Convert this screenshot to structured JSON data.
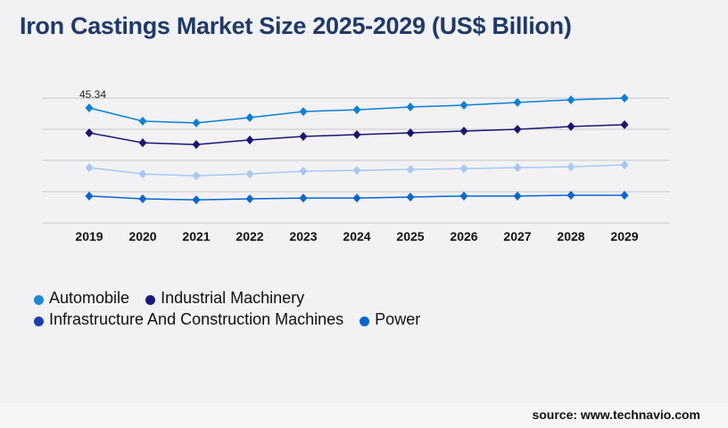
{
  "title": "Iron Castings Market Size 2025-2029 (US$ Billion)",
  "source": "source: www.technavio.com",
  "chart_data": {
    "type": "line",
    "title": "Iron Castings Market Size 2025-2029 (US$ Billion)",
    "xlabel": "",
    "ylabel": "",
    "categories": [
      "2019",
      "2020",
      "2021",
      "2022",
      "2023",
      "2024",
      "2025",
      "2026",
      "2027",
      "2028",
      "2029"
    ],
    "ylim": [
      0,
      49.2
    ],
    "grid": true,
    "legend_position": "bottom-left",
    "data_labels": [
      {
        "series": "Automobile",
        "category": "2019",
        "text": "45.34"
      }
    ],
    "series": [
      {
        "name": "Automobile",
        "color": "#0b7fd6",
        "legend_color": "#1e88d8",
        "values": [
          45.34,
          40.1,
          39.4,
          41.5,
          43.9,
          44.6,
          45.7,
          46.4,
          47.5,
          48.5,
          49.2
        ]
      },
      {
        "name": "Industrial Machinery",
        "color": "#1a1670",
        "legend_color": "#1a1a7a",
        "values": [
          35.5,
          31.6,
          30.9,
          32.7,
          34.1,
          34.8,
          35.5,
          36.2,
          36.9,
          38.0,
          38.7
        ]
      },
      {
        "name": "Infrastructure And Construction Machines",
        "color": "#a8c8f5",
        "legend_color": "#1c3faa",
        "values": [
          21.8,
          19.3,
          18.6,
          19.3,
          20.4,
          20.7,
          21.1,
          21.4,
          21.8,
          22.1,
          22.9
        ]
      },
      {
        "name": "Power",
        "color": "#0a66cc",
        "legend_color": "#0a66cc",
        "values": [
          10.6,
          9.5,
          9.1,
          9.5,
          9.8,
          9.8,
          10.2,
          10.6,
          10.6,
          10.9,
          10.9
        ]
      }
    ]
  }
}
